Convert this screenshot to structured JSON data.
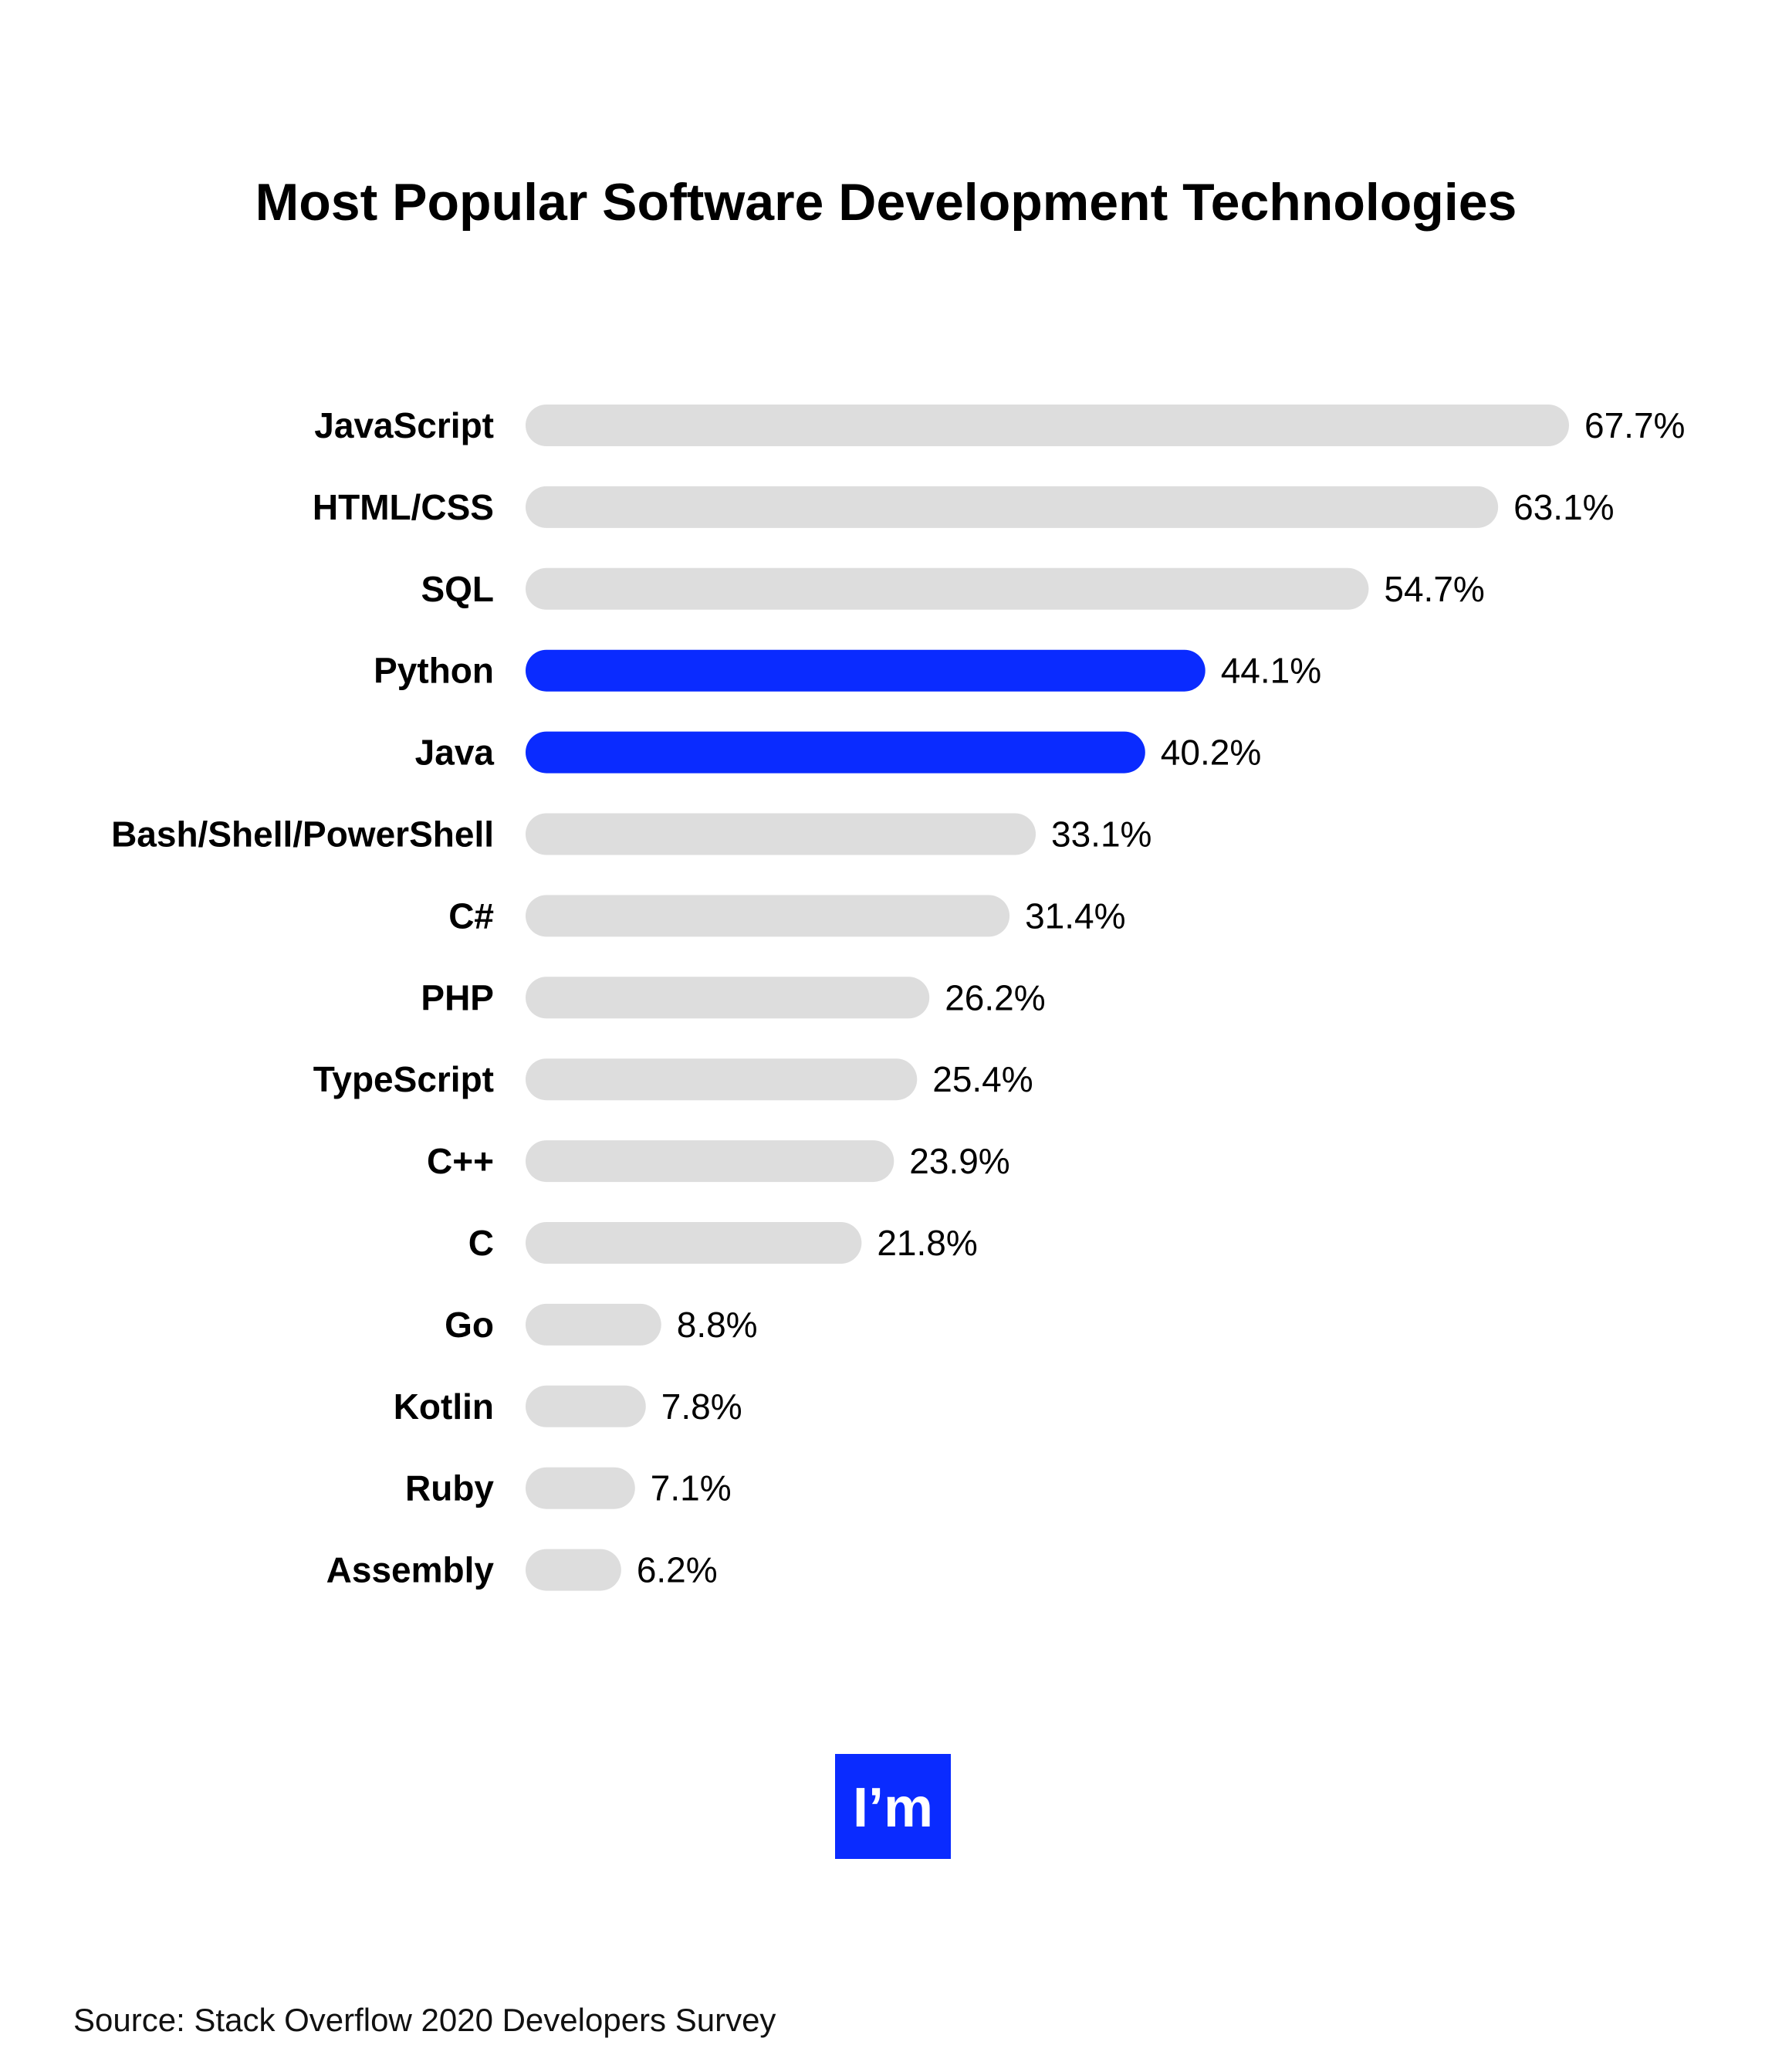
{
  "chart_data": {
    "type": "bar",
    "orientation": "horizontal",
    "title": "Most Popular Software Development Technologies",
    "categories": [
      "JavaScript",
      "HTML/CSS",
      "SQL",
      "Python",
      "Java",
      "Bash/Shell/PowerShell",
      "C#",
      "PHP",
      "TypeScript",
      "C++",
      "C",
      "Go",
      "Kotlin",
      "Ruby",
      "Assembly"
    ],
    "values": [
      67.7,
      63.1,
      54.7,
      44.1,
      40.2,
      33.1,
      31.4,
      26.2,
      25.4,
      23.9,
      21.8,
      8.8,
      7.8,
      7.1,
      6.2
    ],
    "value_labels": [
      "67.7%",
      "63.1%",
      "54.7%",
      "44.1%",
      "40.2%",
      "33.1%",
      "31.4%",
      "26.2%",
      "25.4%",
      "23.9%",
      "21.8%",
      "8.8%",
      "7.8%",
      "7.1%",
      "6.2%"
    ],
    "highlighted": [
      "Python",
      "Java"
    ],
    "colors": {
      "default_bar": "#dddddd",
      "highlight_bar": "#0a2bff",
      "logo_bg": "#0a2bff"
    },
    "grid": false,
    "legend": "none",
    "xlim": [
      0,
      67.7
    ],
    "xlabel": "",
    "ylabel": ""
  },
  "logo": {
    "text": "I’m"
  },
  "source": "Source: Stack Overflow 2020 Developers Survey"
}
